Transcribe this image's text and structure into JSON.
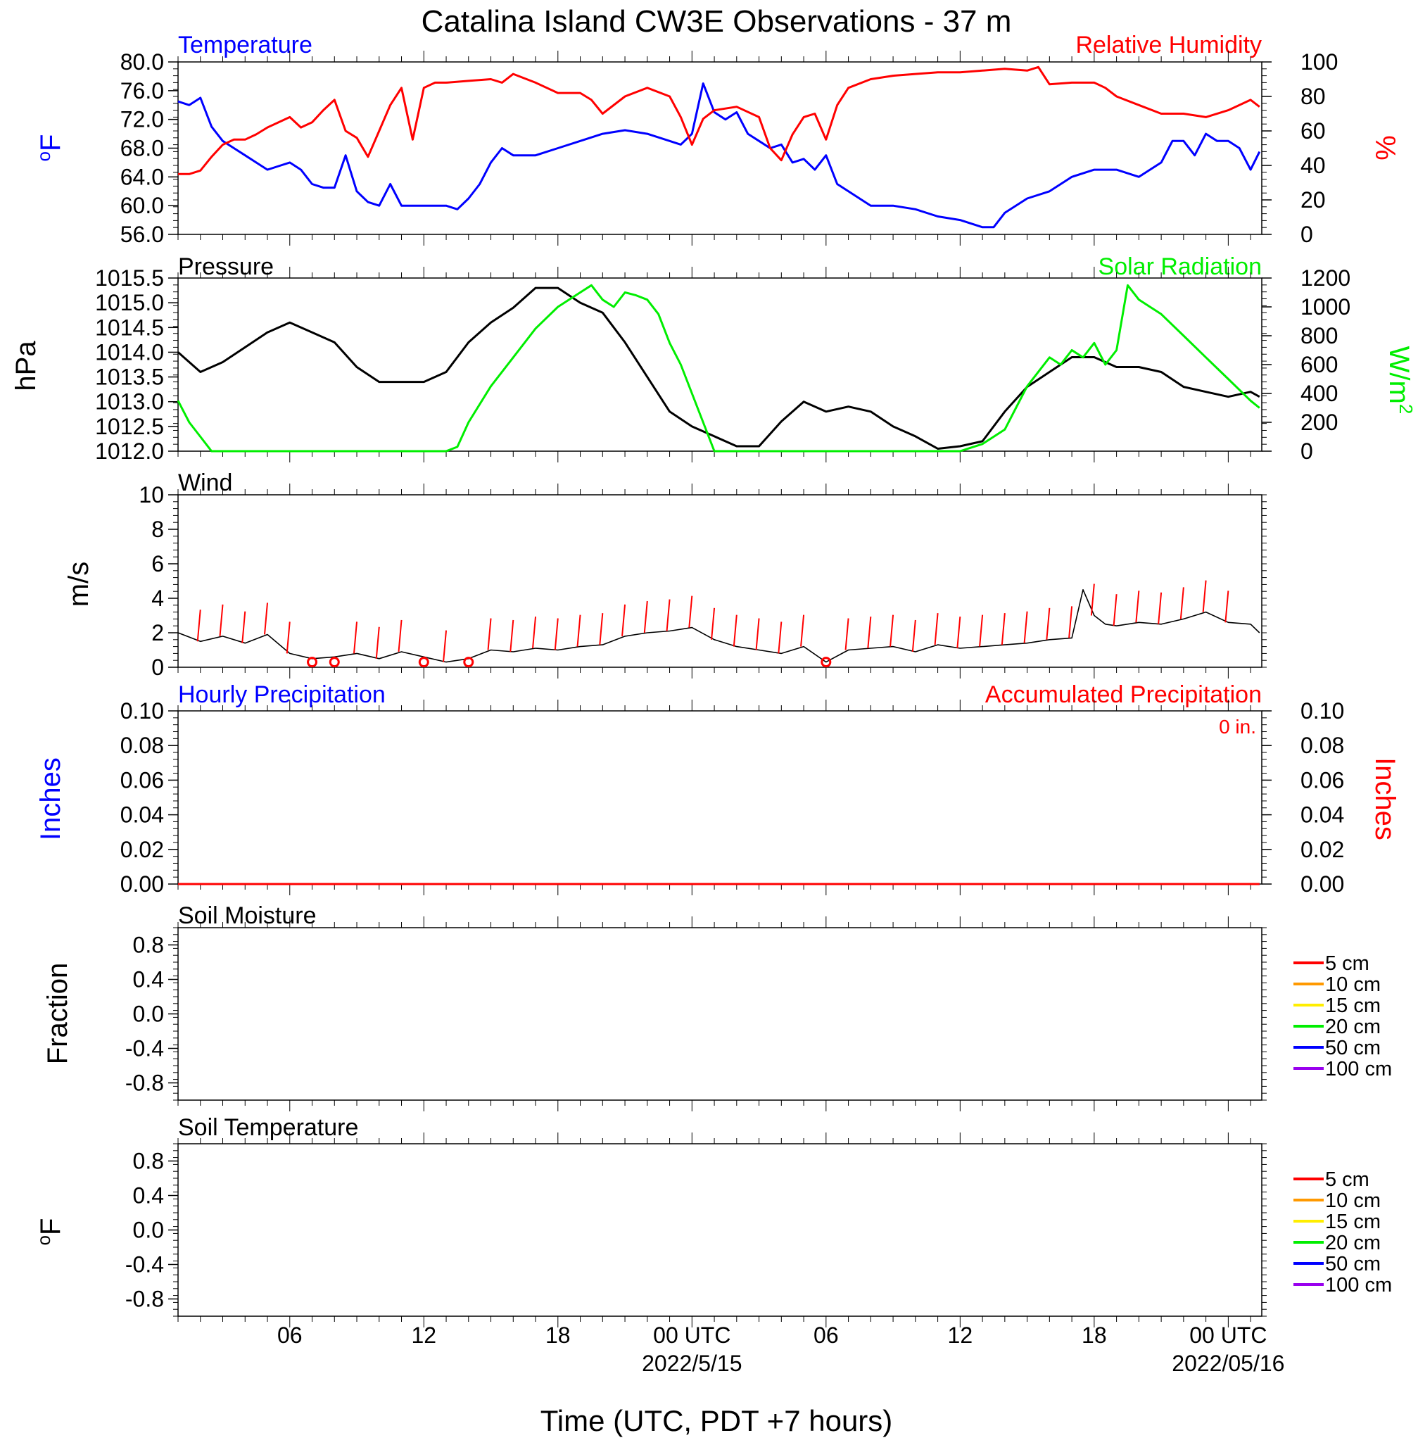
{
  "title": "Catalina Island CW3E Observations - 37 m",
  "xaxis": {
    "label": "Time (UTC, PDT +7 hours)",
    "range_hours": [
      0,
      48.5
    ],
    "ticks": [
      {
        "hour": 5,
        "label": "06"
      },
      {
        "hour": 11,
        "label": "12"
      },
      {
        "hour": 17,
        "label": "18"
      },
      {
        "hour": 23,
        "label": "00 UTC",
        "sublabel": "2022/5/15"
      },
      {
        "hour": 29,
        "label": "06"
      },
      {
        "hour": 35,
        "label": "12"
      },
      {
        "hour": 41,
        "label": "18"
      },
      {
        "hour": 47,
        "label": "00 UTC",
        "sublabel": "2022/05/16"
      }
    ]
  },
  "panels": {
    "temp_rh": {
      "left_title": "Temperature",
      "right_title": "Relative Humidity",
      "left_ylabel": "oF",
      "right_ylabel": "%",
      "left_ticks": [
        "56.0",
        "60.0",
        "64.0",
        "68.0",
        "72.0",
        "76.0",
        "80.0"
      ],
      "right_ticks": [
        "0",
        "20",
        "40",
        "60",
        "80",
        "100"
      ]
    },
    "pressure_solar": {
      "left_title": "Pressure",
      "right_title": "Solar Radiation",
      "left_ylabel": "hPa",
      "right_ylabel": "W/m2",
      "left_ticks": [
        "1012.0",
        "1012.5",
        "1013.0",
        "1013.5",
        "1014.0",
        "1014.5",
        "1015.0",
        "1015.5"
      ],
      "right_ticks": [
        "0",
        "200",
        "400",
        "600",
        "800",
        "1000",
        "1200"
      ]
    },
    "wind": {
      "left_title": "Wind",
      "left_ylabel": "m/s",
      "left_ticks": [
        "0",
        "2",
        "4",
        "6",
        "8",
        "10"
      ]
    },
    "precip": {
      "left_title": "Hourly Precipitation",
      "right_title": "Accumulated Precipitation",
      "accum_text": "0 in.",
      "left_ylabel": "Inches",
      "right_ylabel": "Inches",
      "left_ticks": [
        "0.00",
        "0.02",
        "0.04",
        "0.06",
        "0.08",
        "0.10"
      ],
      "right_ticks": [
        "0.00",
        "0.02",
        "0.04",
        "0.06",
        "0.08",
        "0.10"
      ]
    },
    "soil_moisture": {
      "left_title": "Soil Moisture",
      "left_ylabel": "Fraction",
      "left_ticks": [
        "-0.8",
        "-0.4",
        "0.0",
        "0.4",
        "0.8"
      ],
      "legend": [
        {
          "label": "5 cm",
          "color": "#ff0000"
        },
        {
          "label": "10 cm",
          "color": "#ff9900"
        },
        {
          "label": "15 cm",
          "color": "#ffee00"
        },
        {
          "label": "20 cm",
          "color": "#00ee00"
        },
        {
          "label": "50 cm",
          "color": "#0000ff"
        },
        {
          "label": "100 cm",
          "color": "#9900ee"
        }
      ]
    },
    "soil_temp": {
      "left_title": "Soil Temperature",
      "left_ylabel": "oF",
      "left_ticks": [
        "-0.8",
        "-0.4",
        "0.0",
        "0.4",
        "0.8"
      ],
      "legend": [
        {
          "label": "5 cm",
          "color": "#ff0000"
        },
        {
          "label": "10 cm",
          "color": "#ff9900"
        },
        {
          "label": "15 cm",
          "color": "#ffee00"
        },
        {
          "label": "20 cm",
          "color": "#00ee00"
        },
        {
          "label": "50 cm",
          "color": "#0000ff"
        },
        {
          "label": "100 cm",
          "color": "#9900ee"
        }
      ]
    }
  },
  "chart_data": [
    {
      "type": "line",
      "title": "Temperature",
      "ylabel": "oF",
      "ylim": [
        56,
        80
      ],
      "x_units": "hours since start of plot",
      "series": [
        {
          "name": "Temperature",
          "color": "#0000ff",
          "x": [
            0,
            0.5,
            1,
            1.5,
            2,
            2.5,
            3,
            3.5,
            4,
            4.5,
            5,
            5.5,
            6,
            6.5,
            7,
            7.5,
            8,
            8.5,
            9,
            9.5,
            10,
            10.5,
            11,
            11.5,
            12,
            12.5,
            13,
            13.5,
            14,
            14.5,
            15,
            16,
            17,
            18,
            19,
            20,
            21,
            22,
            22.5,
            23,
            23.5,
            24,
            24.5,
            25,
            25.5,
            26,
            26.5,
            27,
            27.5,
            28,
            28.5,
            29,
            29.5,
            30,
            31,
            32,
            33,
            34,
            35,
            36,
            36.5,
            37,
            38,
            39,
            40,
            41,
            42,
            43,
            44,
            44.5,
            45,
            45.5,
            46,
            46.5,
            47,
            47.5,
            48,
            48.4
          ],
          "y": [
            74.5,
            74,
            75,
            71,
            69,
            68,
            67,
            66,
            65,
            65.5,
            66,
            65,
            63,
            62.5,
            62.5,
            67,
            62,
            60.5,
            60,
            63,
            60,
            60,
            60,
            60,
            60,
            59.5,
            61,
            63,
            66,
            68,
            67,
            67,
            68,
            69,
            70,
            70.5,
            70,
            69,
            68.5,
            70,
            77,
            73,
            72,
            73,
            70,
            69,
            68,
            68.5,
            66,
            66.5,
            65,
            67,
            63,
            62,
            60,
            60,
            59.5,
            58.5,
            58,
            57,
            57,
            59,
            61,
            62,
            64,
            65,
            65,
            64,
            66,
            69,
            69,
            67,
            70,
            69,
            69,
            68,
            65,
            67.5
          ]
        },
        {
          "name": "Relative Humidity",
          "color": "#ff0000",
          "axis": "right",
          "ylim": [
            0,
            100
          ],
          "x": [
            0,
            0.5,
            1,
            1.5,
            2,
            2.5,
            3,
            3.5,
            4,
            4.5,
            5,
            5.5,
            6,
            6.5,
            7,
            7.5,
            8,
            8.5,
            9,
            9.5,
            10,
            10.5,
            11,
            11.5,
            12,
            13,
            14,
            14.5,
            15,
            16,
            17,
            18,
            18.5,
            19,
            20,
            21,
            22,
            22.5,
            23,
            23.5,
            24,
            25,
            26,
            26.5,
            27,
            27.5,
            28,
            28.5,
            29,
            29.5,
            30,
            31,
            32,
            33,
            34,
            35,
            36,
            37,
            38,
            38.5,
            39,
            40,
            41,
            41.5,
            42,
            43,
            44,
            45,
            46,
            47,
            48,
            48.4
          ],
          "y": [
            35,
            35,
            37,
            45,
            52,
            55,
            55,
            58,
            62,
            65,
            68,
            62,
            65,
            72,
            78,
            60,
            56,
            45,
            60,
            75,
            85,
            55,
            85,
            88,
            88,
            89,
            90,
            88,
            93,
            88,
            82,
            82,
            78,
            70,
            80,
            85,
            80,
            68,
            52,
            67,
            72,
            74,
            68,
            50,
            43,
            58,
            68,
            70,
            55,
            75,
            85,
            90,
            92,
            93,
            94,
            94,
            95,
            96,
            95,
            97,
            87,
            88,
            88,
            85,
            80,
            75,
            70,
            70,
            68,
            72,
            78,
            74
          ]
        }
      ]
    },
    {
      "type": "line",
      "title": "Pressure",
      "ylabel": "hPa",
      "ylim": [
        1012,
        1015.5
      ],
      "x_units": "hours since start of plot",
      "series": [
        {
          "name": "Pressure",
          "color": "#000000",
          "x": [
            0,
            1,
            2,
            3,
            4,
            5,
            6,
            7,
            8,
            9,
            10,
            11,
            12,
            13,
            14,
            15,
            16,
            17,
            18,
            19,
            20,
            21,
            22,
            23,
            24,
            25,
            26,
            27,
            28,
            29,
            30,
            31,
            32,
            33,
            34,
            35,
            36,
            37,
            38,
            39,
            40,
            41,
            42,
            43,
            44,
            45,
            46,
            47,
            48,
            48.4
          ],
          "y": [
            1014,
            1013.6,
            1013.8,
            1014.1,
            1014.4,
            1014.6,
            1014.4,
            1014.2,
            1013.7,
            1013.4,
            1013.4,
            1013.4,
            1013.6,
            1014.2,
            1014.6,
            1014.9,
            1015.3,
            1015.3,
            1015.0,
            1014.8,
            1014.2,
            1013.5,
            1012.8,
            1012.5,
            1012.3,
            1012.1,
            1012.1,
            1012.6,
            1013.0,
            1012.8,
            1012.9,
            1012.8,
            1012.5,
            1012.3,
            1012.05,
            1012.1,
            1012.2,
            1012.8,
            1013.3,
            1013.6,
            1013.9,
            1013.9,
            1013.7,
            1013.7,
            1013.6,
            1013.3,
            1013.2,
            1013.1,
            1013.2,
            1013.1
          ]
        },
        {
          "name": "Solar Radiation",
          "color": "#00ee00",
          "axis": "right",
          "ylim": [
            0,
            1200
          ],
          "x": [
            0,
            0.5,
            1,
            1.5,
            2,
            12,
            12.5,
            13,
            14,
            15,
            16,
            17,
            18,
            18.5,
            19,
            19.5,
            20,
            20.5,
            21,
            21.5,
            22,
            22.5,
            23,
            23.5,
            24,
            24.5,
            25,
            35,
            36,
            37,
            37.5,
            38,
            38.5,
            39,
            39.5,
            40,
            40.5,
            41,
            41.5,
            42,
            42.5,
            43,
            43.5,
            44,
            45,
            46,
            47,
            48,
            48.4
          ],
          "y": [
            350,
            200,
            100,
            0,
            0,
            0,
            30,
            200,
            450,
            650,
            850,
            1000,
            1100,
            1150,
            1050,
            1000,
            1100,
            1080,
            1050,
            950,
            750,
            600,
            400,
            200,
            0,
            0,
            0,
            0,
            50,
            150,
            300,
            450,
            550,
            650,
            600,
            700,
            650,
            750,
            600,
            700,
            1150,
            1050,
            1000,
            950,
            800,
            650,
            500,
            350,
            300
          ]
        }
      ]
    },
    {
      "type": "line",
      "title": "Wind",
      "ylabel": "m/s",
      "ylim": [
        0,
        10
      ],
      "x_units": "hours since start of plot",
      "series": [
        {
          "name": "Wind",
          "color": "#000000",
          "x": [
            0,
            1,
            2,
            3,
            4,
            5,
            6,
            7,
            8,
            9,
            10,
            11,
            12,
            13,
            14,
            15,
            16,
            17,
            18,
            19,
            20,
            21,
            22,
            23,
            24,
            25,
            26,
            27,
            28,
            29,
            30,
            31,
            32,
            33,
            34,
            35,
            36,
            37,
            38,
            39,
            40,
            40.5,
            41,
            41.5,
            42,
            43,
            44,
            45,
            46,
            47,
            48,
            48.4
          ],
          "y": [
            2,
            1.5,
            1.8,
            1.4,
            1.9,
            0.8,
            0.5,
            0.6,
            0.8,
            0.5,
            0.9,
            0.6,
            0.3,
            0.5,
            1.0,
            0.9,
            1.1,
            1.0,
            1.2,
            1.3,
            1.8,
            2.0,
            2.1,
            2.3,
            1.6,
            1.2,
            1.0,
            0.8,
            1.2,
            0.3,
            1.0,
            1.1,
            1.2,
            0.9,
            1.3,
            1.1,
            1.2,
            1.3,
            1.4,
            1.6,
            1.7,
            4.5,
            3.0,
            2.5,
            2.4,
            2.6,
            2.5,
            2.8,
            3.2,
            2.6,
            2.5,
            2.0
          ]
        }
      ]
    },
    {
      "type": "line",
      "title": "Hourly Precipitation",
      "ylabel": "Inches",
      "ylim": [
        0,
        0.1
      ],
      "series": [
        {
          "name": "Hourly Precipitation",
          "color": "#0000ff",
          "x": [
            0,
            48.4
          ],
          "y": [
            0,
            0
          ]
        },
        {
          "name": "Accumulated Precipitation",
          "color": "#ff0000",
          "axis": "right",
          "x": [
            0,
            48.4
          ],
          "y": [
            0,
            0
          ]
        }
      ]
    },
    {
      "type": "line",
      "title": "Soil Moisture",
      "ylabel": "Fraction",
      "ylim": [
        -1,
        1
      ],
      "series": []
    },
    {
      "type": "line",
      "title": "Soil Temperature",
      "ylabel": "oF",
      "ylim": [
        -1,
        1
      ],
      "series": []
    }
  ]
}
